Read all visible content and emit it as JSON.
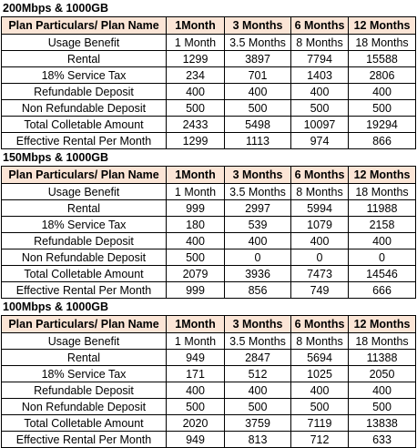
{
  "headers": [
    "Plan Particulars/ Plan Name",
    "1Month",
    "3 Months",
    "6 Months",
    "12 Months"
  ],
  "sections": [
    {
      "title": "200Mbps & 1000GB",
      "rows": [
        [
          "Usage Benefit",
          "1 Month",
          "3.5 Months",
          "8 Months",
          "18 Months"
        ],
        [
          "Rental",
          "1299",
          "3897",
          "7794",
          "15588"
        ],
        [
          "18% Service Tax",
          "234",
          "701",
          "1403",
          "2806"
        ],
        [
          "Refundable Deposit",
          "400",
          "400",
          "400",
          "400"
        ],
        [
          "Non Refundable Deposit",
          "500",
          "500",
          "500",
          "500"
        ],
        [
          "Total Colletable Amount",
          "2433",
          "5498",
          "10097",
          "19294"
        ],
        [
          "Effective Rental Per Month",
          "1299",
          "1113",
          "974",
          "866"
        ]
      ]
    },
    {
      "title": "150Mbps & 1000GB",
      "rows": [
        [
          "Usage Benefit",
          "1 Month",
          "3.5 Months",
          "8 Months",
          "18 Months"
        ],
        [
          "Rental",
          "999",
          "2997",
          "5994",
          "11988"
        ],
        [
          "18% Service Tax",
          "180",
          "539",
          "1079",
          "2158"
        ],
        [
          "Refundable Deposit",
          "400",
          "400",
          "400",
          "400"
        ],
        [
          "Non Refundable Deposit",
          "500",
          "0",
          "0",
          "0"
        ],
        [
          "Total Colletable Amount",
          "2079",
          "3936",
          "7473",
          "14546"
        ],
        [
          "Effective Rental Per Month",
          "999",
          "856",
          "749",
          "666"
        ]
      ]
    },
    {
      "title": "100Mbps & 1000GB",
      "rows": [
        [
          "Usage Benefit",
          "1 Month",
          "3.5 Months",
          "8 Months",
          "18 Months"
        ],
        [
          "Rental",
          "949",
          "2847",
          "5694",
          "11388"
        ],
        [
          "18% Service Tax",
          "171",
          "512",
          "1025",
          "2050"
        ],
        [
          "Refundable Deposit",
          "400",
          "400",
          "400",
          "400"
        ],
        [
          "Non Refundable Deposit",
          "500",
          "500",
          "500",
          "500"
        ],
        [
          "Total Colletable Amount",
          "2020",
          "3759",
          "7119",
          "13838"
        ],
        [
          "Effective Rental Per Month",
          "949",
          "813",
          "712",
          "633"
        ]
      ]
    }
  ],
  "colors": {
    "header_bg": "#fbe5d6",
    "border": "#000000"
  }
}
